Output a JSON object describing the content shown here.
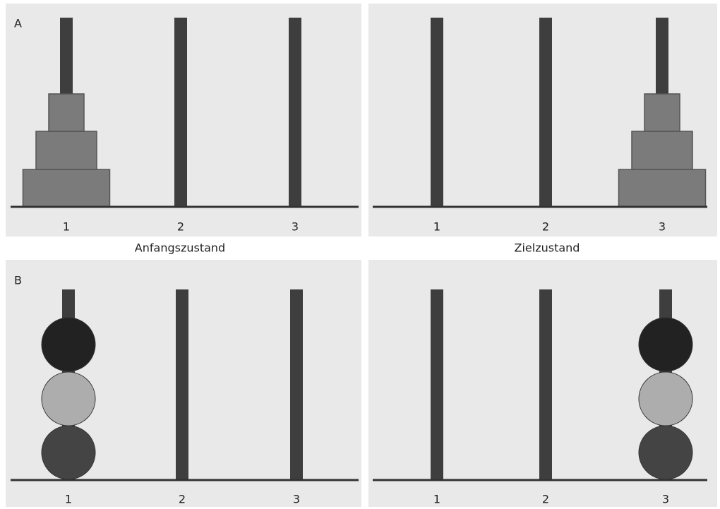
{
  "rows": [
    {
      "label": "A",
      "states": [
        {
          "pegs": [
            "1",
            "2",
            "3"
          ]
        },
        {
          "pegs": [
            "1",
            "2",
            "3"
          ]
        }
      ]
    },
    {
      "label": "B",
      "states": [
        {
          "pegs": [
            "1",
            "2",
            "3"
          ]
        },
        {
          "pegs": [
            "1",
            "2",
            "3"
          ]
        }
      ]
    }
  ],
  "captions": [
    "Anfangszustand",
    "Zielzustand"
  ]
}
